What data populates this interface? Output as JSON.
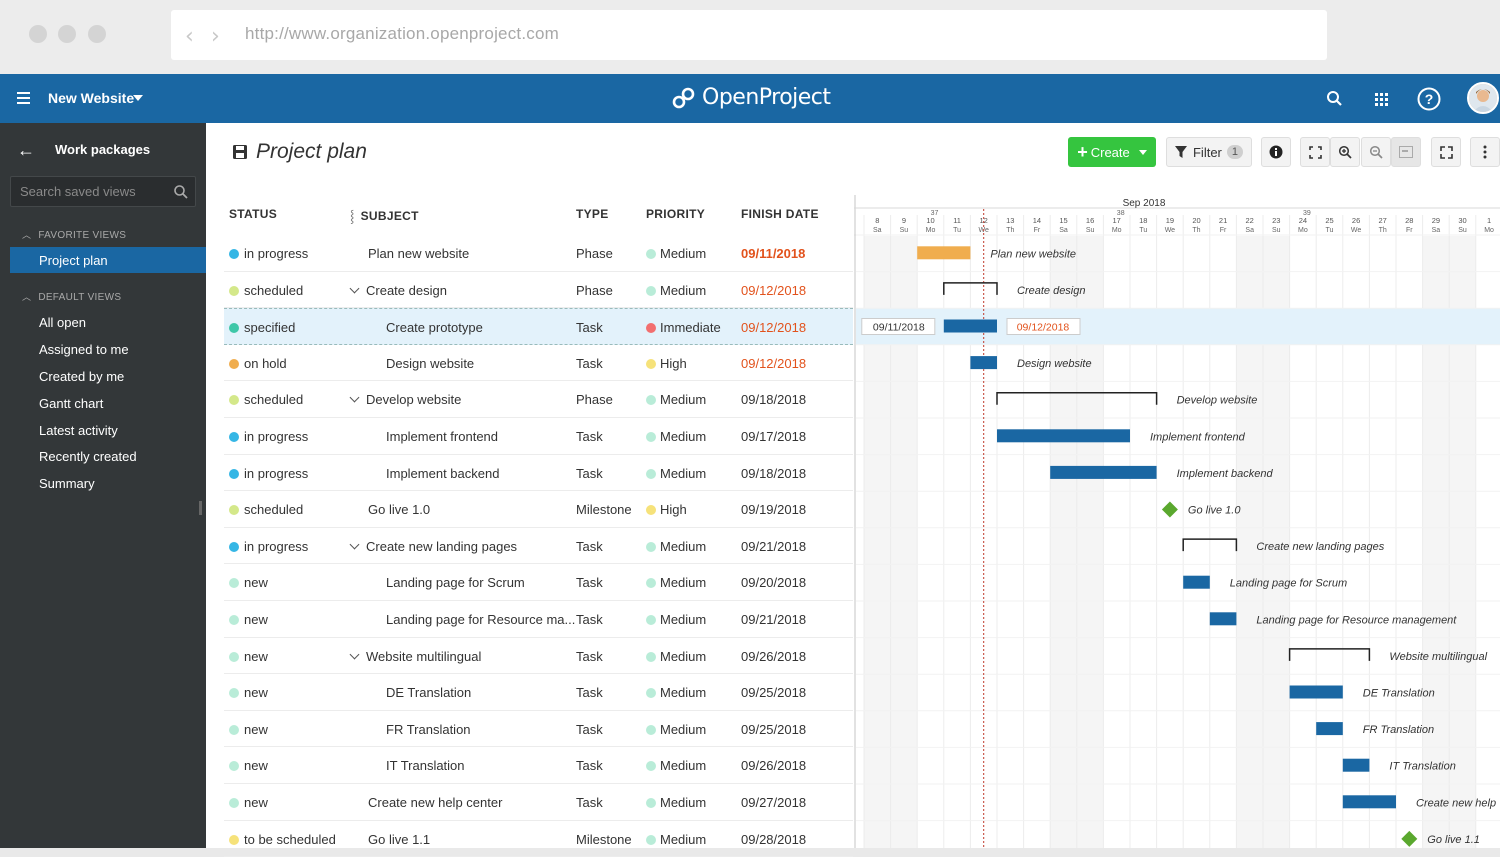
{
  "browser": {
    "url": "http://www.organization.openproject.com"
  },
  "topbar": {
    "project_name": "New Website",
    "logo": "OpenProject"
  },
  "sidebar": {
    "title": "Work packages",
    "search_placeholder": "Search saved views",
    "favorite_header": "FAVORITE VIEWS",
    "favorite_items": [
      "Project plan"
    ],
    "default_header": "DEFAULT VIEWS",
    "default_items": [
      "All open",
      "Assigned to me",
      "Created by me",
      "Gantt chart",
      "Latest activity",
      "Recently created",
      "Summary"
    ]
  },
  "page": {
    "title": "Project plan",
    "create_label": "Create",
    "filter_label": "Filter",
    "filter_count": "1"
  },
  "table": {
    "headers": {
      "status": "STATUS",
      "subject": "SUBJECT",
      "type": "TYPE",
      "priority": "PRIORITY",
      "finish": "FINISH DATE"
    },
    "rows": [
      {
        "status": "in progress",
        "subject": "Plan new website",
        "type": "Phase",
        "priority": "Medium",
        "finish": "09/11/2018",
        "overdue": true
      },
      {
        "status": "scheduled",
        "subject": "Create design",
        "type": "Phase",
        "priority": "Medium",
        "finish": "09/12/2018",
        "overdue": true
      },
      {
        "status": "specified",
        "subject": "Create prototype",
        "type": "Task",
        "priority": "Immediate",
        "finish": "09/12/2018",
        "overdue": true
      },
      {
        "status": "on hold",
        "subject": "Design website",
        "type": "Task",
        "priority": "High",
        "finish": "09/12/2018",
        "overdue": true
      },
      {
        "status": "scheduled",
        "subject": "Develop website",
        "type": "Phase",
        "priority": "Medium",
        "finish": "09/18/2018",
        "overdue": false
      },
      {
        "status": "in progress",
        "subject": "Implement frontend",
        "type": "Task",
        "priority": "Medium",
        "finish": "09/17/2018",
        "overdue": false
      },
      {
        "status": "in progress",
        "subject": "Implement backend",
        "type": "Task",
        "priority": "Medium",
        "finish": "09/18/2018",
        "overdue": false
      },
      {
        "status": "scheduled",
        "subject": "Go live 1.0",
        "type": "Milestone",
        "priority": "High",
        "finish": "09/19/2018",
        "overdue": false
      },
      {
        "status": "in progress",
        "subject": "Create new landing pages",
        "type": "Task",
        "priority": "Medium",
        "finish": "09/21/2018",
        "overdue": false
      },
      {
        "status": "new",
        "subject": "Landing page for Scrum",
        "type": "Task",
        "priority": "Medium",
        "finish": "09/20/2018",
        "overdue": false
      },
      {
        "status": "new",
        "subject": "Landing page for Resource ma...",
        "type": "Task",
        "priority": "Medium",
        "finish": "09/21/2018",
        "overdue": false
      },
      {
        "status": "new",
        "subject": "Website multilingual",
        "type": "Task",
        "priority": "Medium",
        "finish": "09/26/2018",
        "overdue": false
      },
      {
        "status": "new",
        "subject": "DE Translation",
        "type": "Task",
        "priority": "Medium",
        "finish": "09/25/2018",
        "overdue": false
      },
      {
        "status": "new",
        "subject": "FR Translation",
        "type": "Task",
        "priority": "Medium",
        "finish": "09/25/2018",
        "overdue": false
      },
      {
        "status": "new",
        "subject": "IT Translation",
        "type": "Task",
        "priority": "Medium",
        "finish": "09/26/2018",
        "overdue": false
      },
      {
        "status": "new",
        "subject": "Create new help center",
        "type": "Task",
        "priority": "Medium",
        "finish": "09/27/2018",
        "overdue": false
      },
      {
        "status": "to be scheduled",
        "subject": "Go live 1.1",
        "type": "Milestone",
        "priority": "Medium",
        "finish": "09/28/2018",
        "overdue": false
      }
    ]
  },
  "gantt": {
    "month_label": "Sep 2018",
    "week_numbers": [
      "37",
      "38",
      "39"
    ],
    "days": [
      {
        "d": "8",
        "w": "Sa"
      },
      {
        "d": "9",
        "w": "Su"
      },
      {
        "d": "10",
        "w": "Mo"
      },
      {
        "d": "11",
        "w": "Tu"
      },
      {
        "d": "12",
        "w": "We"
      },
      {
        "d": "13",
        "w": "Th"
      },
      {
        "d": "14",
        "w": "Fr"
      },
      {
        "d": "15",
        "w": "Sa"
      },
      {
        "d": "16",
        "w": "Su"
      },
      {
        "d": "17",
        "w": "Mo"
      },
      {
        "d": "18",
        "w": "Tu"
      },
      {
        "d": "19",
        "w": "We"
      },
      {
        "d": "20",
        "w": "Th"
      },
      {
        "d": "21",
        "w": "Fr"
      },
      {
        "d": "22",
        "w": "Sa"
      },
      {
        "d": "23",
        "w": "Su"
      },
      {
        "d": "24",
        "w": "Mo"
      },
      {
        "d": "25",
        "w": "Tu"
      },
      {
        "d": "26",
        "w": "We"
      },
      {
        "d": "27",
        "w": "Th"
      },
      {
        "d": "28",
        "w": "Fr"
      },
      {
        "d": "29",
        "w": "Sa"
      },
      {
        "d": "30",
        "w": "Su"
      },
      {
        "d": "1",
        "w": "Mo"
      }
    ],
    "today_day": "12",
    "items": [
      {
        "label": "Plan new website",
        "kind": "bar",
        "start": "2018-09-10",
        "end": "2018-09-11",
        "color": "#f0ad4e"
      },
      {
        "label": "Create design",
        "kind": "phase",
        "start": "2018-09-11",
        "end": "2018-09-12"
      },
      {
        "label": "",
        "kind": "bar",
        "start": "2018-09-11",
        "end": "2018-09-12",
        "color": "#1a67a3",
        "start_label": "09/11/2018",
        "end_label": "09/12/2018"
      },
      {
        "label": "Design website",
        "kind": "bar",
        "start": "2018-09-12",
        "end": "2018-09-12",
        "color": "#1a67a3"
      },
      {
        "label": "Develop website",
        "kind": "phase",
        "start": "2018-09-13",
        "end": "2018-09-18"
      },
      {
        "label": "Implement frontend",
        "kind": "bar",
        "start": "2018-09-13",
        "end": "2018-09-17",
        "color": "#1a67a3"
      },
      {
        "label": "Implement backend",
        "kind": "bar",
        "start": "2018-09-15",
        "end": "2018-09-18",
        "color": "#1a67a3"
      },
      {
        "label": "Go live 1.0",
        "kind": "milestone",
        "start": "2018-09-19",
        "end": "2018-09-19",
        "color": "#5aa82e"
      },
      {
        "label": "Create new landing pages",
        "kind": "phase",
        "start": "2018-09-20",
        "end": "2018-09-21"
      },
      {
        "label": "Landing page for Scrum",
        "kind": "bar",
        "start": "2018-09-20",
        "end": "2018-09-20",
        "color": "#1a67a3"
      },
      {
        "label": "Landing page for Resource management",
        "kind": "bar",
        "start": "2018-09-21",
        "end": "2018-09-21",
        "color": "#1a67a3"
      },
      {
        "label": "Website multilingual",
        "kind": "phase",
        "start": "2018-09-24",
        "end": "2018-09-26"
      },
      {
        "label": "DE Translation",
        "kind": "bar",
        "start": "2018-09-24",
        "end": "2018-09-25",
        "color": "#1a67a3"
      },
      {
        "label": "FR Translation",
        "kind": "bar",
        "start": "2018-09-25",
        "end": "2018-09-25",
        "color": "#1a67a3"
      },
      {
        "label": "IT Translation",
        "kind": "bar",
        "start": "2018-09-26",
        "end": "2018-09-26",
        "color": "#1a67a3"
      },
      {
        "label": "Create new help",
        "kind": "bar",
        "start": "2018-09-26",
        "end": "2018-09-27",
        "color": "#1a67a3"
      },
      {
        "label": "Go live 1.1",
        "kind": "milestone",
        "start": "2018-09-28",
        "end": "2018-09-28",
        "color": "#5aa82e"
      }
    ]
  },
  "colors": {
    "status": {
      "in progress": "#35b6e5",
      "scheduled": "#d4e88a",
      "specified": "#3ec7a8",
      "on hold": "#f0ad4e",
      "new": "#b9ecd8",
      "to be scheduled": "#f6e27a"
    },
    "priority": {
      "Medium": "#b9ecd8",
      "Immediate": "#f26f6f",
      "High": "#f6e27a"
    },
    "overdue": "#e2521c"
  }
}
